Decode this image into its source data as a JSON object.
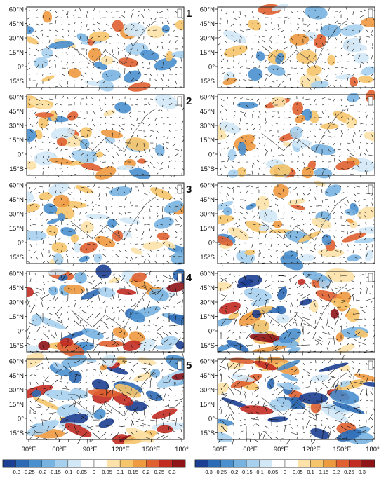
{
  "panel_numbers": [
    "1",
    "2",
    "3",
    "4",
    "5"
  ],
  "lat_ticks": [
    "60°N",
    "45°N",
    "30°N",
    "15°N",
    "0°",
    "15°S"
  ],
  "lon_ticks": [
    "30°E",
    "60°E",
    "90°E",
    "120°E",
    "150°E",
    "180°"
  ],
  "colorbar_labels": [
    "-0.3",
    "-0.25",
    "-0.2",
    "-0.15",
    "-0.1",
    "-0.05",
    "0",
    "0.05",
    "0.1",
    "0.15",
    "0.2",
    "0.25",
    "0.3"
  ],
  "colorbar_colors": [
    "#1c3f94",
    "#2c6ab5",
    "#4a8fce",
    "#77b3e0",
    "#a7d0ee",
    "#d3e8f6",
    "#ffffff",
    "#ffffff",
    "#fce2a8",
    "#f6c46a",
    "#ee9a40",
    "#df6030",
    "#c22b22",
    "#8e1418"
  ]
}
